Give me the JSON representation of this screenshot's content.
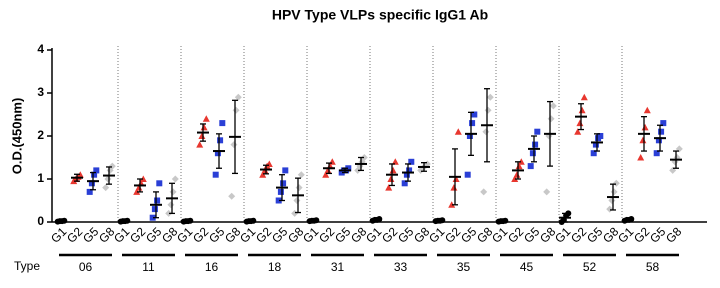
{
  "chart_data": {
    "type": "dot",
    "title": "HPV Type VLPs specific IgG1 Ab",
    "ylabel": "O.D.(450nm)",
    "xlabel": "Type",
    "categories": [
      "06",
      "11",
      "16",
      "18",
      "31",
      "33",
      "35",
      "45",
      "52",
      "58"
    ],
    "ylim": [
      0,
      4
    ],
    "yticks": [
      0,
      1,
      2,
      3,
      4
    ],
    "series": [
      {
        "name": "G1",
        "color": "#000000",
        "marker": "circle",
        "values": [
          0.02,
          0.02,
          0.02,
          0.02,
          0.03,
          0.05,
          0.03,
          0.02,
          0.1,
          0.05
        ],
        "errors": [
          0.01,
          0.01,
          0.01,
          0.01,
          0.01,
          0.02,
          0.01,
          0.01,
          0.1,
          0.02
        ],
        "points": [
          [
            0.01,
            0.02,
            0.02,
            0.03
          ],
          [
            0.01,
            0.02,
            0.02,
            0.03
          ],
          [
            0.01,
            0.02,
            0.02,
            0.03
          ],
          [
            0.01,
            0.02,
            0.02,
            0.03
          ],
          [
            0.02,
            0.03,
            0.03,
            0.04
          ],
          [
            0.03,
            0.05,
            0.05,
            0.07
          ],
          [
            0.02,
            0.03,
            0.03,
            0.04
          ],
          [
            0.01,
            0.02,
            0.02,
            0.03
          ],
          [
            0,
            0.05,
            0.15,
            0.2
          ],
          [
            0.03,
            0.05,
            0.05,
            0.07
          ]
        ]
      },
      {
        "name": "G2",
        "color": "#e8372f",
        "marker": "triangle",
        "values": [
          1.03,
          0.85,
          2.08,
          1.22,
          1.25,
          1.1,
          1.05,
          1.2,
          2.45,
          2.05
        ],
        "errors": [
          0.08,
          0.15,
          0.2,
          0.1,
          0.12,
          0.25,
          0.65,
          0.2,
          0.3,
          0.4
        ],
        "points": [
          [
            0.95,
            1.0,
            1.05,
            1.1
          ],
          [
            0.7,
            0.8,
            0.9,
            1.0
          ],
          [
            1.8,
            2.0,
            2.2,
            2.4
          ],
          [
            1.1,
            1.2,
            1.3,
            1.35
          ],
          [
            1.1,
            1.2,
            1.3,
            1.4
          ],
          [
            0.8,
            1.0,
            1.2,
            1.4
          ],
          [
            0.4,
            0.8,
            1.0,
            2.1
          ],
          [
            1.0,
            1.1,
            1.3,
            1.4
          ],
          [
            2.1,
            2.3,
            2.6,
            2.9
          ],
          [
            1.5,
            1.9,
            2.2,
            2.6
          ]
        ]
      },
      {
        "name": "G5",
        "color": "#2a3fd6",
        "marker": "square",
        "values": [
          0.95,
          0.4,
          1.65,
          0.8,
          1.2,
          1.15,
          2.05,
          1.7,
          1.85,
          1.95
        ],
        "errors": [
          0.2,
          0.3,
          0.4,
          0.3,
          0.05,
          0.2,
          0.5,
          0.3,
          0.2,
          0.3
        ],
        "points": [
          [
            0.7,
            0.9,
            1.1,
            1.2
          ],
          [
            0.1,
            0.3,
            0.5,
            0.9
          ],
          [
            1.1,
            1.6,
            1.9,
            2.3
          ],
          [
            0.5,
            0.7,
            0.9,
            1.2
          ],
          [
            1.15,
            1.2,
            1.2,
            1.25
          ],
          [
            0.9,
            1.1,
            1.2,
            1.4
          ],
          [
            1.1,
            2.0,
            2.3,
            2.5
          ],
          [
            1.3,
            1.6,
            1.8,
            2.1
          ],
          [
            1.6,
            1.8,
            1.95,
            2.0
          ],
          [
            1.6,
            1.9,
            2.1,
            2.3
          ]
        ]
      },
      {
        "name": "G8",
        "color": "#c8c8c8",
        "marker": "diamond",
        "values": [
          1.08,
          0.55,
          1.98,
          0.62,
          1.35,
          1.28,
          2.25,
          2.05,
          0.58,
          1.45
        ],
        "errors": [
          0.2,
          0.35,
          0.85,
          0.4,
          0.15,
          0.1,
          0.85,
          0.75,
          0.3,
          0.2
        ],
        "points": [
          [
            0.8,
            1.0,
            1.2,
            1.3
          ],
          [
            0.2,
            0.4,
            0.7,
            1.0
          ],
          [
            0.6,
            1.8,
            2.6,
            2.9
          ],
          [
            0.2,
            0.5,
            0.8,
            1.1
          ],
          [
            1.2,
            1.3,
            1.4,
            1.5
          ],
          [
            1.2,
            1.25,
            1.3,
            1.35
          ],
          [
            0.7,
            2.1,
            2.6,
            2.9
          ],
          [
            0.7,
            2.0,
            2.4,
            2.7
          ],
          [
            0.3,
            0.5,
            0.7,
            0.9
          ],
          [
            1.2,
            1.4,
            1.5,
            1.7
          ]
        ]
      }
    ]
  }
}
